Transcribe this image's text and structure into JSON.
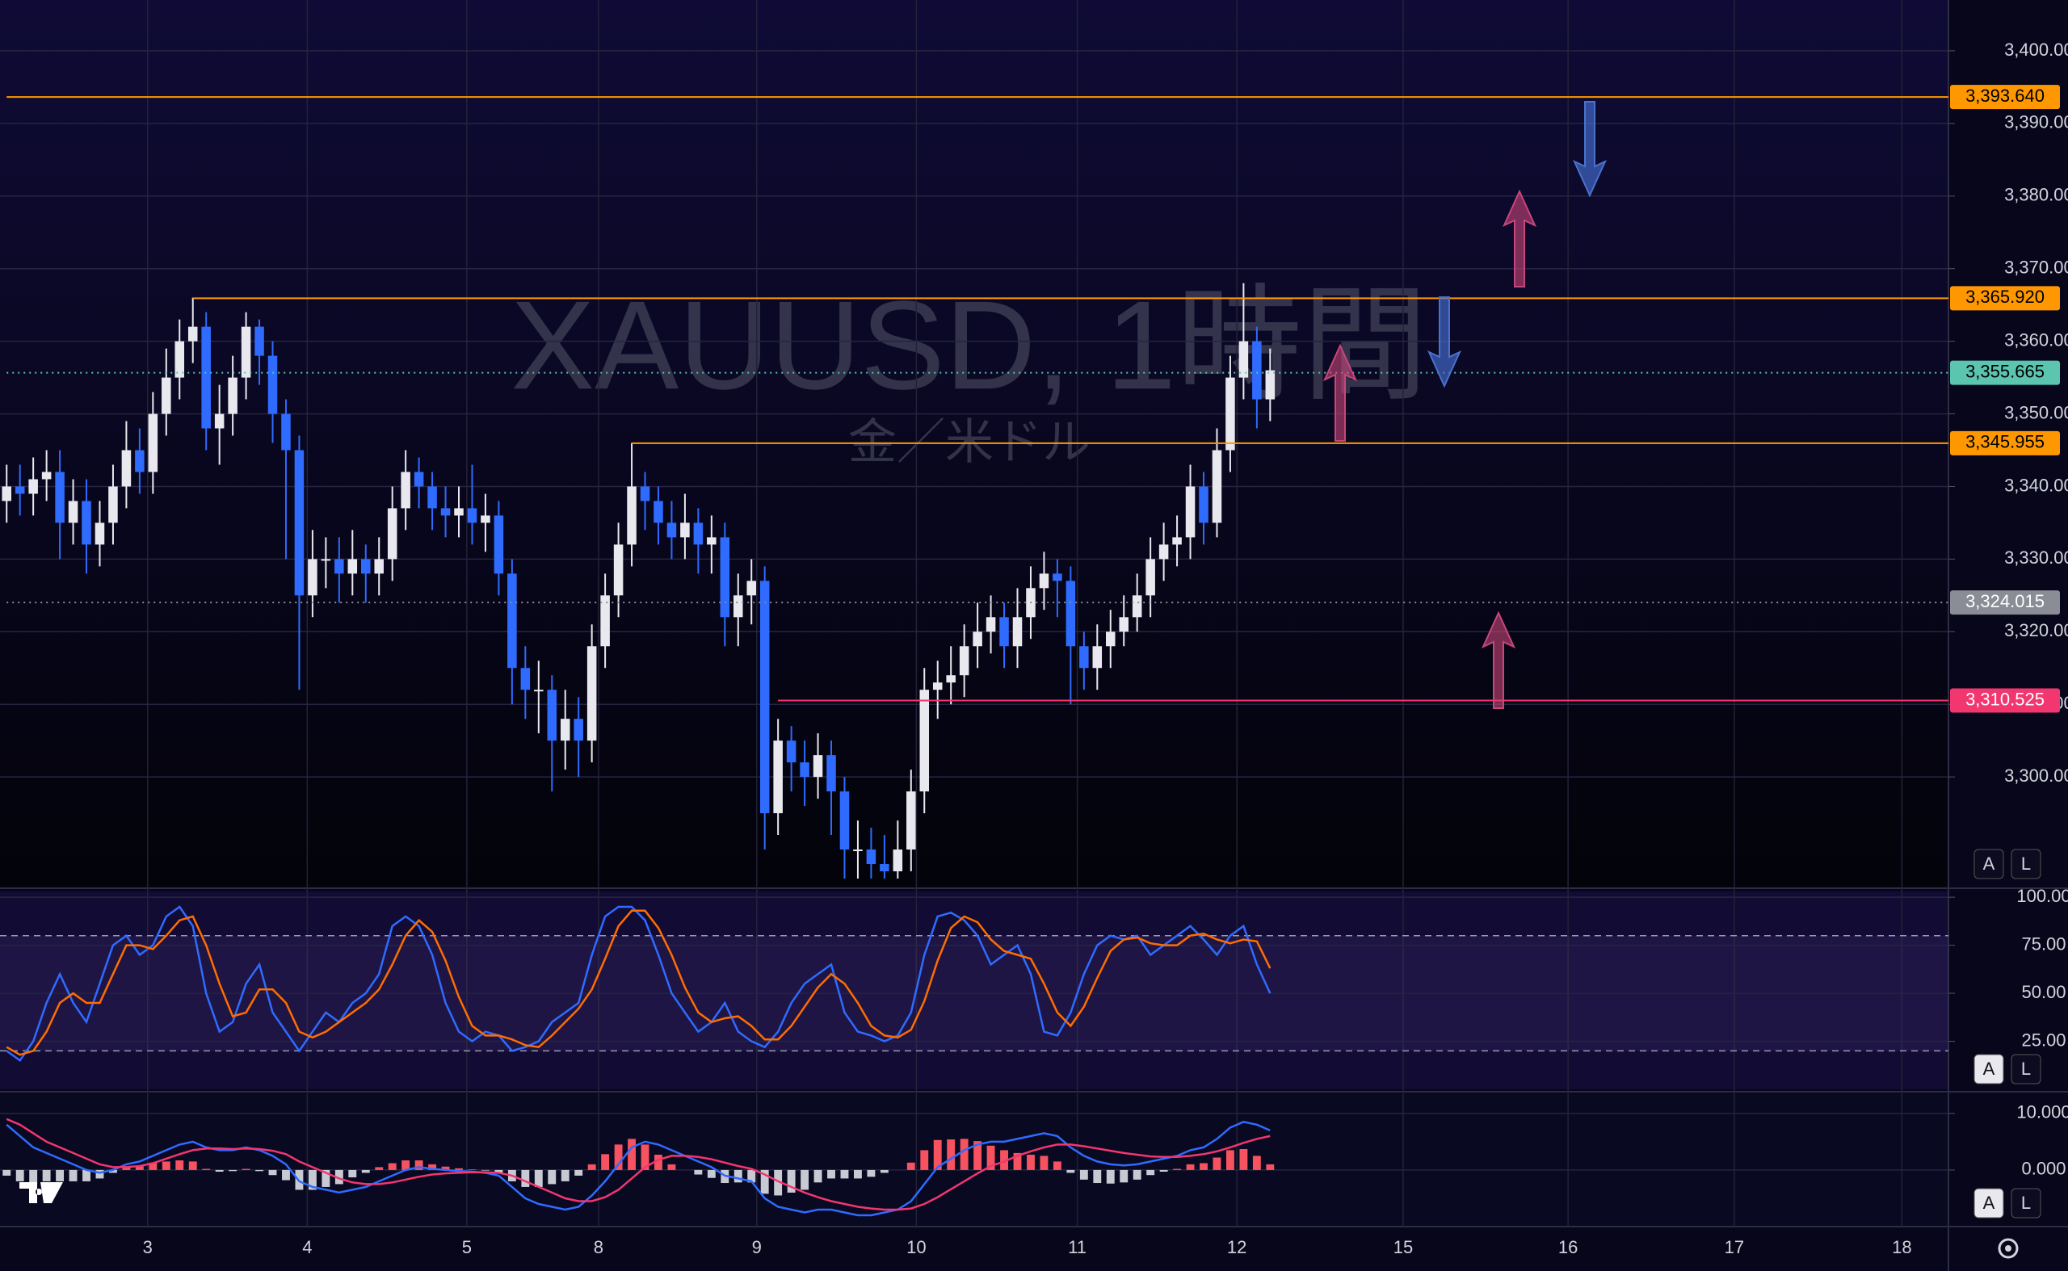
{
  "chart_data": [
    {
      "type": "candlestick",
      "title": "XAUUSD, 1時間",
      "subtitle": "金／米ドル",
      "up_color": "#e8e8ee",
      "down_color": "#2f6bff",
      "grid": true,
      "xlim": [
        0,
        146.5
      ],
      "xticks": [
        {
          "value": 11.1,
          "label": "3"
        },
        {
          "value": 23.1,
          "label": "4"
        },
        {
          "value": 35.1,
          "label": "5"
        },
        {
          "value": 45.0,
          "label": "8"
        },
        {
          "value": 56.9,
          "label": "9"
        },
        {
          "value": 68.9,
          "label": "10"
        },
        {
          "value": 81.0,
          "label": "11"
        },
        {
          "value": 93.0,
          "label": "12"
        },
        {
          "value": 105.5,
          "label": "15"
        },
        {
          "value": 117.9,
          "label": "16"
        },
        {
          "value": 130.4,
          "label": "17"
        },
        {
          "value": 143.0,
          "label": "18"
        }
      ],
      "ylim": [
        3285,
        3407
      ],
      "yticks": [
        {
          "value": 3300,
          "label": "3,300.000"
        },
        {
          "value": 3310,
          "label": "3,310.000"
        },
        {
          "value": 3320,
          "label": "3,320.000"
        },
        {
          "value": 3330,
          "label": "3,330.000"
        },
        {
          "value": 3340,
          "label": "3,340.000"
        },
        {
          "value": 3350,
          "label": "3,350.000"
        },
        {
          "value": 3360,
          "label": "3,360.000"
        },
        {
          "value": 3370,
          "label": "3,370.000"
        },
        {
          "value": 3380,
          "label": "3,380.000"
        },
        {
          "value": 3390,
          "label": "3,390.000"
        },
        {
          "value": 3400,
          "label": "3,400.000"
        }
      ],
      "levels": [
        {
          "value": 3393.64,
          "label": "3,393.640",
          "color": "#ff9800",
          "text_color": "#000000",
          "style": "solid"
        },
        {
          "value": 3365.92,
          "label": "3,365.920",
          "color": "#ff9800",
          "text_color": "#000000",
          "style": "solid"
        },
        {
          "value": 3355.665,
          "label": "3,355.665",
          "color": "#5cc5b0",
          "text_color": "#000000",
          "style": "dotted"
        },
        {
          "value": 3345.955,
          "label": "3,345.955",
          "color": "#ff9800",
          "text_color": "#000000",
          "style": "solid"
        },
        {
          "value": 3324.015,
          "label": "3,324.015",
          "color": "#8a8c96",
          "text_color": "#ffffff",
          "style": "dotted"
        },
        {
          "value": 3310.525,
          "label": "3,310.525",
          "color": "#f23670",
          "text_color": "#ffffff",
          "style": "solid"
        }
      ],
      "open": [
        3338,
        3340,
        3339,
        3341,
        3342,
        3335,
        3338,
        3332,
        3335,
        3340,
        3345,
        3342,
        3350,
        3355,
        3360,
        3362,
        3348,
        3350,
        3355,
        3362,
        3358,
        3350,
        3345,
        3325,
        3330,
        3330,
        3328,
        3330,
        3328,
        3330,
        3337,
        3342,
        3340,
        3337,
        3336,
        3337,
        3335,
        3336,
        3328,
        3315,
        3312,
        3312,
        3305,
        3308,
        3305,
        3318,
        3325,
        3332,
        3340,
        3338,
        3335,
        3333,
        3335,
        3332,
        3333,
        3322,
        3325,
        3327,
        3295,
        3305,
        3302,
        3300,
        3303,
        3298,
        3290,
        3290,
        3288,
        3287,
        3290,
        3298,
        3312,
        3313,
        3314,
        3318,
        3320,
        3322,
        3318,
        3322,
        3326,
        3328,
        3327,
        3318,
        3315,
        3318,
        3320,
        3322,
        3325,
        3330,
        3332,
        3333,
        3340,
        3335,
        3345,
        3355,
        3360,
        3352
      ],
      "high": [
        3343,
        3343,
        3344,
        3345,
        3345,
        3341,
        3341,
        3338,
        3343,
        3349,
        3348,
        3353,
        3359,
        3363,
        3366,
        3364,
        3354,
        3358,
        3364,
        3363,
        3360,
        3352,
        3347,
        3334,
        3333,
        3333,
        3334,
        3332,
        3333,
        3340,
        3345,
        3344,
        3342,
        3340,
        3340,
        3343,
        3339,
        3338,
        3330,
        3318,
        3316,
        3314,
        3312,
        3311,
        3321,
        3328,
        3335,
        3346,
        3342,
        3340,
        3338,
        3339,
        3337,
        3336,
        3335,
        3328,
        3330,
        3329,
        3308,
        3307,
        3305,
        3306,
        3305,
        3300,
        3294,
        3293,
        3292,
        3294,
        3301,
        3315,
        3316,
        3318,
        3321,
        3324,
        3325,
        3324,
        3326,
        3329,
        3331,
        3330,
        3329,
        3320,
        3321,
        3323,
        3325,
        3328,
        3333,
        3335,
        3336,
        3343,
        3342,
        3348,
        3358,
        3368,
        3362,
        3359
      ],
      "low": [
        3335,
        3336,
        3336,
        3338,
        3330,
        3332,
        3328,
        3329,
        3332,
        3337,
        3339,
        3339,
        3347,
        3352,
        3357,
        3345,
        3343,
        3347,
        3352,
        3354,
        3346,
        3330,
        3312,
        3322,
        3326,
        3324,
        3325,
        3324,
        3325,
        3327,
        3334,
        3337,
        3334,
        3333,
        3333,
        3332,
        3331,
        3325,
        3310,
        3308,
        3306,
        3298,
        3301,
        3300,
        3302,
        3315,
        3322,
        3329,
        3334,
        3332,
        3330,
        3330,
        3328,
        3328,
        3318,
        3318,
        3321,
        3290,
        3292,
        3298,
        3296,
        3297,
        3292,
        3286,
        3286,
        3286,
        3286,
        3286,
        3287,
        3295,
        3308,
        3310,
        3311,
        3315,
        3317,
        3315,
        3315,
        3319,
        3323,
        3322,
        3310,
        3312,
        3312,
        3315,
        3318,
        3320,
        3322,
        3327,
        3329,
        3330,
        3332,
        3333,
        3342,
        3352,
        3348,
        3349
      ],
      "close": [
        3340,
        3339,
        3341,
        3342,
        3335,
        3338,
        3332,
        3335,
        3340,
        3345,
        3342,
        3350,
        3355,
        3360,
        3362,
        3348,
        3350,
        3355,
        3362,
        3358,
        3350,
        3345,
        3325,
        3330,
        3330,
        3328,
        3330,
        3328,
        3330,
        3337,
        3342,
        3340,
        3337,
        3336,
        3337,
        3335,
        3336,
        3328,
        3315,
        3312,
        3312,
        3305,
        3308,
        3305,
        3318,
        3325,
        3332,
        3340,
        3338,
        3335,
        3333,
        3335,
        3332,
        3333,
        3322,
        3325,
        3327,
        3295,
        3305,
        3302,
        3300,
        3303,
        3298,
        3290,
        3290,
        3288,
        3287,
        3290,
        3298,
        3312,
        3313,
        3314,
        3318,
        3320,
        3322,
        3318,
        3322,
        3326,
        3328,
        3327,
        3318,
        3315,
        3318,
        3320,
        3322,
        3325,
        3330,
        3332,
        3333,
        3340,
        3335,
        3345,
        3355,
        3360,
        3352,
        3356
      ]
    },
    {
      "type": "line",
      "ylim": [
        0,
        103
      ],
      "bands": [
        20,
        80
      ],
      "band_color": "#7e57c2",
      "yticks": [
        {
          "value": 25,
          "label": "25.00"
        },
        {
          "value": 50,
          "label": "50.00"
        },
        {
          "value": 75,
          "label": "75.00"
        },
        {
          "value": 100,
          "label": "100.00"
        }
      ],
      "series": [
        {
          "color": "#2f6bff",
          "values": [
            20,
            15,
            25,
            45,
            60,
            45,
            35,
            55,
            75,
            80,
            70,
            75,
            90,
            95,
            85,
            50,
            30,
            35,
            55,
            65,
            40,
            30,
            20,
            30,
            40,
            35,
            45,
            50,
            60,
            85,
            90,
            85,
            70,
            45,
            30,
            25,
            30,
            28,
            20,
            22,
            25,
            35,
            40,
            45,
            70,
            90,
            95,
            95,
            88,
            70,
            50,
            40,
            30,
            35,
            45,
            30,
            25,
            22,
            30,
            45,
            55,
            60,
            65,
            40,
            30,
            28,
            25,
            28,
            40,
            70,
            90,
            92,
            88,
            80,
            65,
            70,
            75,
            60,
            30,
            28,
            40,
            60,
            75,
            80,
            78,
            80,
            70,
            75,
            80,
            85,
            78,
            70,
            80,
            85,
            65,
            50
          ]
        },
        {
          "color": "#ff6d00",
          "values": [
            22,
            18,
            20,
            30,
            45,
            50,
            45,
            45,
            60,
            75,
            75,
            73,
            80,
            88,
            90,
            75,
            55,
            38,
            40,
            52,
            52,
            45,
            30,
            27,
            30,
            35,
            40,
            45,
            52,
            65,
            80,
            88,
            82,
            67,
            48,
            33,
            28,
            28,
            26,
            23,
            22,
            28,
            35,
            42,
            52,
            68,
            85,
            93,
            93,
            84,
            70,
            53,
            40,
            35,
            37,
            38,
            33,
            26,
            26,
            33,
            43,
            53,
            60,
            55,
            45,
            33,
            28,
            27,
            31,
            46,
            67,
            84,
            90,
            87,
            78,
            72,
            70,
            68,
            55,
            40,
            33,
            43,
            58,
            72,
            78,
            79,
            76,
            75,
            75,
            80,
            81,
            78,
            76,
            78,
            77,
            63
          ]
        }
      ]
    },
    {
      "type": "macd",
      "ylim": [
        -10,
        13.4
      ],
      "yticks": [
        {
          "value": 0,
          "label": "0.000"
        },
        {
          "value": 10,
          "label": "10.000"
        }
      ],
      "histogram": {
        "up_color": "#f7525f",
        "down_color": "#c8cad3",
        "values": [
          -1,
          -2,
          -2.5,
          -2,
          -2,
          -2,
          -2,
          -1.5,
          -0.5,
          0.5,
          0.8,
          1.3,
          1.5,
          1.7,
          1.5,
          0.2,
          -0.3,
          -0.2,
          0.2,
          -0.2,
          -0.9,
          -1.8,
          -3.5,
          -3.5,
          -3,
          -2.5,
          -1.3,
          -0.5,
          0.5,
          1.2,
          1.7,
          1.7,
          1,
          0.6,
          0.3,
          0.1,
          -0.1,
          -0.5,
          -2,
          -3,
          -3,
          -2.5,
          -2,
          -1,
          1,
          2.8,
          4.5,
          5.5,
          4.5,
          2.7,
          1,
          0,
          -0.8,
          -1.4,
          -2.3,
          -2.2,
          -2.2,
          -4.2,
          -4.5,
          -4,
          -3.5,
          -2.2,
          -1.5,
          -1.5,
          -1.5,
          -1.2,
          -0.5,
          0,
          1.3,
          3.5,
          5.3,
          5.4,
          5.5,
          5.1,
          4.3,
          3.5,
          3,
          2.7,
          2.5,
          1.5,
          -0.5,
          -1.7,
          -2.3,
          -2.4,
          -2.2,
          -1.7,
          -0.9,
          -0.3,
          0.2,
          1,
          1.2,
          2.2,
          3.5,
          3.7,
          2.5,
          1
        ]
      },
      "series": [
        {
          "color": "#2f6bff",
          "values": [
            8,
            6,
            4,
            3,
            2,
            1,
            0,
            -0.5,
            0,
            1,
            1.5,
            2.5,
            3.5,
            4.5,
            5,
            4,
            3.5,
            3.5,
            4,
            3.5,
            2.5,
            1,
            -2,
            -3,
            -3.5,
            -4,
            -3.5,
            -3,
            -2,
            -1,
            0,
            0.5,
            0.2,
            0,
            -0.2,
            -0.3,
            -0.5,
            -1,
            -3,
            -5,
            -6,
            -6.5,
            -7,
            -6.5,
            -4.5,
            -2,
            1,
            4,
            5,
            4.5,
            3.5,
            2.5,
            1.5,
            0.5,
            -1,
            -1.5,
            -2,
            -5,
            -6.5,
            -7,
            -7.5,
            -7,
            -7,
            -7.5,
            -8,
            -8,
            -7.5,
            -7,
            -5.5,
            -2.5,
            0.5,
            2,
            3.5,
            4.5,
            5,
            5,
            5.5,
            6,
            6.5,
            6,
            4,
            2.5,
            1.5,
            1,
            0.8,
            1,
            1.5,
            2,
            2.5,
            3.5,
            4,
            5.5,
            7.5,
            8.5,
            8,
            7
          ]
        },
        {
          "color": "#f23670",
          "values": [
            9,
            8,
            6.5,
            5,
            4,
            3,
            2,
            1,
            0.5,
            0.5,
            0.7,
            1.2,
            2,
            2.8,
            3.5,
            3.8,
            3.8,
            3.7,
            3.8,
            3.7,
            3.4,
            2.8,
            1.5,
            0.5,
            -0.5,
            -1.5,
            -2.2,
            -2.5,
            -2.5,
            -2.2,
            -1.7,
            -1.2,
            -0.8,
            -0.6,
            -0.5,
            -0.4,
            -0.4,
            -0.5,
            -1,
            -2,
            -3,
            -4,
            -5,
            -5.5,
            -5.5,
            -4.8,
            -3.5,
            -1.5,
            0.5,
            1.8,
            2.5,
            2.5,
            2.3,
            1.9,
            1.3,
            0.7,
            0.2,
            -0.8,
            -2,
            -3,
            -4,
            -4.8,
            -5.5,
            -6,
            -6.5,
            -6.8,
            -7,
            -7,
            -6.8,
            -6,
            -4.8,
            -3.4,
            -2,
            -0.6,
            0.7,
            1.5,
            2.5,
            3.3,
            4,
            4.5,
            4.5,
            4.2,
            3.8,
            3.4,
            3,
            2.7,
            2.4,
            2.3,
            2.3,
            2.5,
            2.8,
            3.3,
            4,
            4.8,
            5.5,
            6
          ]
        }
      ]
    }
  ],
  "ui": {
    "scale_buttons": [
      "A",
      "L"
    ]
  }
}
